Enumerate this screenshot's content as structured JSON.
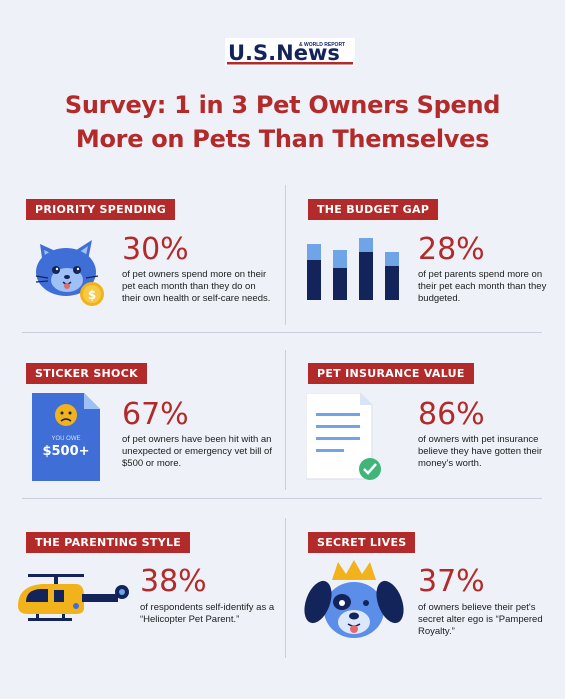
{
  "brand": {
    "logo_main": "U.S.News",
    "logo_sub": "& WORLD REPORT"
  },
  "title": {
    "line1": "Survey: 1 in 3 Pet Owners Spend",
    "line2": "More on Pets Than Themselves"
  },
  "colors": {
    "accent": "#b22a2a",
    "navy": "#12245a",
    "light_blue": "#6fa4e6",
    "background": "#eef2f8"
  },
  "sections": [
    {
      "badge": "PRIORITY SPENDING",
      "percent": "30%",
      "description": "of pet owners spend more on their pet each month than they do on their own health or self-care needs.",
      "icon": "cat-face-with-coin-icon"
    },
    {
      "badge": "THE BUDGET GAP",
      "percent": "28%",
      "description": "of pet parents spend more on their pet each month than they budgeted.",
      "icon": "bar-chart-icon"
    },
    {
      "badge": "STICKER SHOCK",
      "percent": "67%",
      "description": "of pet owners have been hit with an unexpected or emergency vet bill of $500 or more.",
      "icon": "bill-document-icon",
      "icon_text": {
        "small": "YOU OWE",
        "amount": "$500+"
      }
    },
    {
      "badge": "PET INSURANCE VALUE",
      "percent": "86%",
      "description": "of owners with pet insurance believe they have gotten their money's worth.",
      "icon": "document-checkmark-icon"
    },
    {
      "badge": "THE PARENTING STYLE",
      "percent": "38%",
      "description": "of respondents self-identify as a “Helicopter Pet Parent.”",
      "icon": "helicopter-icon"
    },
    {
      "badge": "SECRET LIVES",
      "percent": "37%",
      "description": "of owners believe their pet's secret alter ego is “Pampered Royalty.”",
      "icon": "dog-with-crown-icon"
    }
  ]
}
